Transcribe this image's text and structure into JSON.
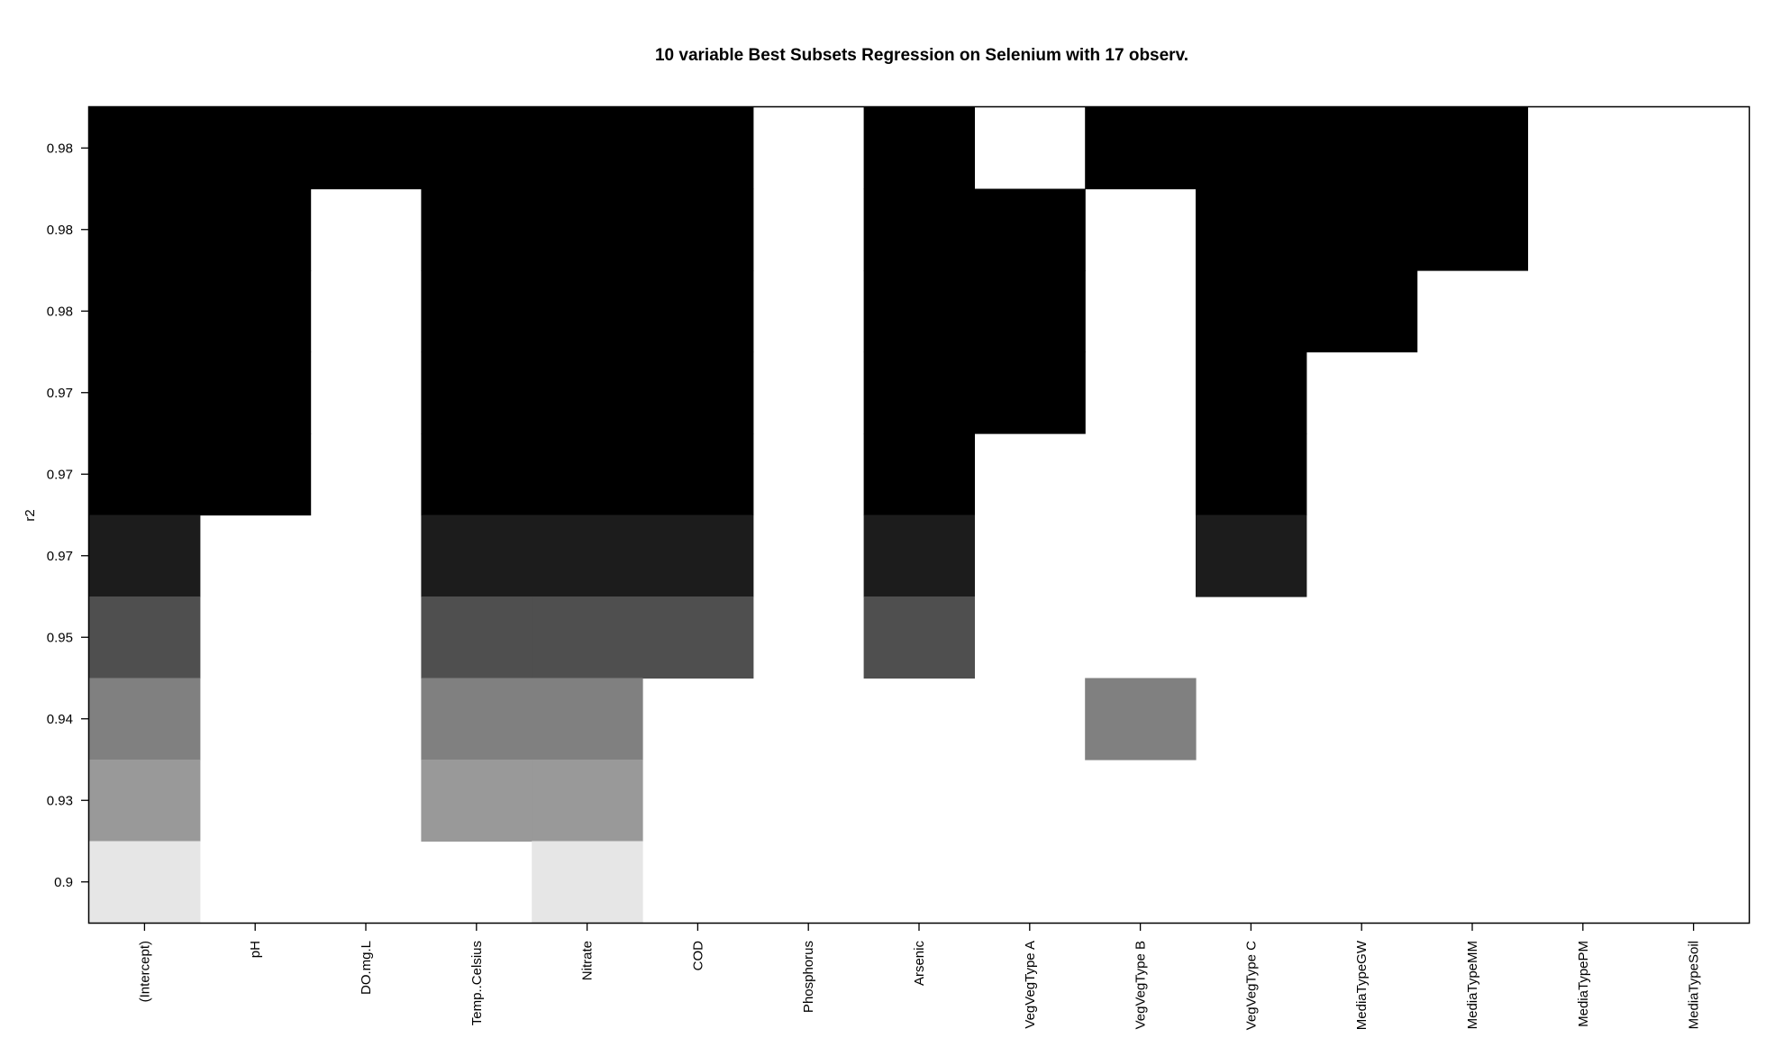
{
  "chart_data": {
    "type": "heatmap",
    "title": "10 variable Best Subsets Regression on Selenium with 17 observ.",
    "ylabel": "r2",
    "xlabel": "",
    "columns": [
      "(Intercept)",
      "pH",
      "DO.mg.L",
      "Temp..Celsius",
      "Nitrate",
      "COD",
      "Phosphorus",
      "Arsenic",
      "VegVegType A",
      "VegVegType B",
      "VegVegType C",
      "MediaTypeGW",
      "MediaTypeMM",
      "MediaTypePM",
      "MediaTypeSoil"
    ],
    "rows": [
      {
        "r2_label": "0.98",
        "shade": "#000000",
        "included": [
          1,
          1,
          1,
          1,
          1,
          1,
          0,
          1,
          0,
          1,
          1,
          1,
          1,
          0,
          0
        ]
      },
      {
        "r2_label": "0.98",
        "shade": "#000000",
        "included": [
          1,
          1,
          0,
          1,
          1,
          1,
          0,
          1,
          1,
          0,
          1,
          1,
          1,
          0,
          0
        ]
      },
      {
        "r2_label": "0.98",
        "shade": "#000000",
        "included": [
          1,
          1,
          0,
          1,
          1,
          1,
          0,
          1,
          1,
          0,
          1,
          1,
          0,
          0,
          0
        ]
      },
      {
        "r2_label": "0.97",
        "shade": "#000000",
        "included": [
          1,
          1,
          0,
          1,
          1,
          1,
          0,
          1,
          1,
          0,
          1,
          0,
          0,
          0,
          0
        ]
      },
      {
        "r2_label": "0.97",
        "shade": "#000000",
        "included": [
          1,
          1,
          0,
          1,
          1,
          1,
          0,
          1,
          0,
          0,
          1,
          0,
          0,
          0,
          0
        ]
      },
      {
        "r2_label": "0.97",
        "shade": "#1c1c1c",
        "included": [
          1,
          0,
          0,
          1,
          1,
          1,
          0,
          1,
          0,
          0,
          1,
          0,
          0,
          0,
          0
        ]
      },
      {
        "r2_label": "0.95",
        "shade": "#4f4f4f",
        "included": [
          1,
          0,
          0,
          1,
          1,
          1,
          0,
          1,
          0,
          0,
          0,
          0,
          0,
          0,
          0
        ]
      },
      {
        "r2_label": "0.94",
        "shade": "#808080",
        "included": [
          1,
          0,
          0,
          1,
          1,
          0,
          0,
          0,
          0,
          1,
          0,
          0,
          0,
          0,
          0
        ]
      },
      {
        "r2_label": "0.93",
        "shade": "#999999",
        "included": [
          1,
          0,
          0,
          1,
          1,
          0,
          0,
          0,
          0,
          0,
          0,
          0,
          0,
          0,
          0
        ]
      },
      {
        "r2_label": "0.9",
        "shade": "#e6e6e6",
        "included": [
          1,
          0,
          0,
          0,
          1,
          0,
          0,
          0,
          0,
          0,
          0,
          0,
          0,
          0,
          0
        ]
      }
    ]
  }
}
